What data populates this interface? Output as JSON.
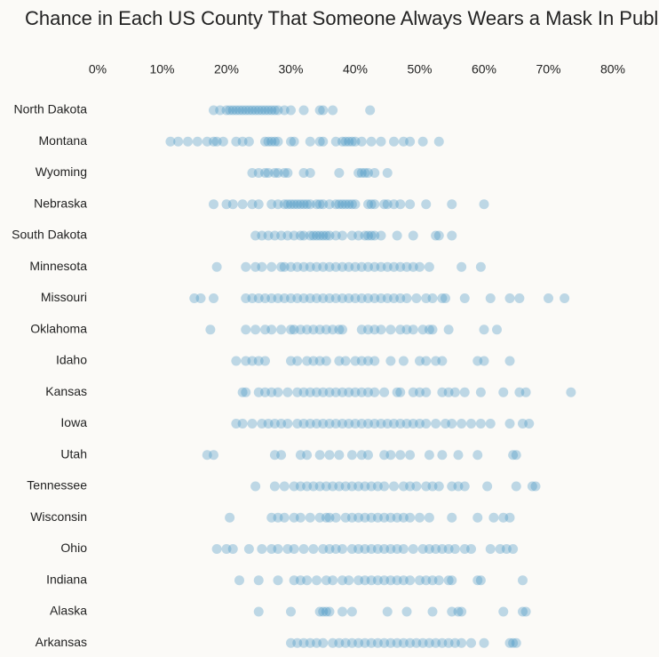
{
  "chart_data": {
    "type": "strip",
    "title": "Chance in Each US County That Someone Always Wears a Mask In Public",
    "color": "#3b8fc2",
    "xlim": [
      0,
      80
    ],
    "xticks": [
      {
        "value": 0,
        "label": "0%"
      },
      {
        "value": 10,
        "label": "10%"
      },
      {
        "value": 20,
        "label": "20%"
      },
      {
        "value": 30,
        "label": "30%"
      },
      {
        "value": 40,
        "label": "40%"
      },
      {
        "value": 50,
        "label": "50%"
      },
      {
        "value": 60,
        "label": "60%"
      },
      {
        "value": 70,
        "label": "70%"
      },
      {
        "value": 80,
        "label": "80%"
      }
    ],
    "categories": [
      "North Dakota",
      "Montana",
      "Wyoming",
      "Nebraska",
      "South Dakota",
      "Minnesota",
      "Missouri",
      "Oklahoma",
      "Idaho",
      "Kansas",
      "Iowa",
      "Utah",
      "Tennessee",
      "Wisconsin",
      "Ohio",
      "Indiana",
      "Alaska",
      "Arkansas"
    ],
    "values": [
      [
        18,
        19,
        20,
        20.5,
        21,
        21.5,
        22,
        22.5,
        23,
        23.5,
        24,
        24.5,
        25,
        25.5,
        26,
        26.5,
        27,
        27.5,
        28,
        29,
        30,
        32,
        34.5,
        35,
        36.5,
        42.3
      ],
      [
        11.3,
        12.5,
        14,
        15.5,
        17,
        18,
        18.5,
        19.5,
        21.5,
        22.5,
        23.5,
        26,
        26.5,
        27,
        27.5,
        28,
        30,
        30.5,
        33,
        34.5,
        35,
        37,
        38,
        38.5,
        39,
        39.5,
        40,
        41,
        42.5,
        44,
        46,
        47.5,
        48.5,
        50.5,
        53
      ],
      [
        24,
        25,
        26,
        26.5,
        27.5,
        28,
        29,
        29.5,
        32,
        33,
        37.5,
        40.5,
        41,
        41.5,
        42,
        43,
        45
      ],
      [
        18,
        20,
        21,
        22.5,
        24,
        25,
        27,
        28,
        29,
        29.5,
        30,
        30.5,
        31,
        31.5,
        32,
        32.5,
        33,
        34,
        34.5,
        35,
        36,
        37,
        37.5,
        38,
        38.5,
        39,
        39.5,
        40,
        42,
        42.5,
        43,
        44.5,
        45,
        46,
        47,
        48.5,
        51,
        55,
        60
      ],
      [
        24.5,
        25.5,
        26.5,
        27.5,
        28.5,
        29.5,
        30.5,
        31.5,
        32,
        33,
        33.5,
        34,
        34.5,
        35,
        35.5,
        36,
        37,
        38,
        39.5,
        40.5,
        41.5,
        42,
        42.5,
        43,
        44,
        46.5,
        49,
        52.5,
        53,
        55
      ],
      [
        18.5,
        23,
        24.5,
        25.5,
        27,
        28.5,
        29,
        30,
        31,
        32,
        33,
        34,
        35,
        36,
        37,
        38,
        39,
        40,
        41,
        42,
        43,
        44,
        45,
        46,
        47,
        48,
        49,
        50,
        51.5,
        56.5,
        59.5
      ],
      [
        15,
        16,
        18,
        23,
        24,
        25,
        26,
        27,
        28,
        29,
        30,
        31,
        32,
        33,
        34,
        35,
        36,
        37,
        38,
        39,
        40,
        41,
        42,
        43,
        44,
        45,
        46,
        47,
        48,
        49.5,
        51,
        52,
        53.5,
        54,
        57,
        61,
        64,
        65.5,
        70,
        72.5
      ],
      [
        17.5,
        23,
        24.5,
        26,
        27,
        28.5,
        30,
        30.5,
        31.5,
        32.5,
        33.5,
        34.5,
        35.5,
        36.5,
        37.5,
        38,
        41,
        42,
        43,
        44,
        45.5,
        47,
        48,
        49,
        50.5,
        51.5,
        52,
        54.5,
        60,
        62
      ],
      [
        21.5,
        23,
        24,
        25,
        26,
        30,
        31,
        32.5,
        33.5,
        34.5,
        35.5,
        37.5,
        38.5,
        40,
        41,
        42,
        43,
        45.5,
        47.5,
        50,
        51,
        52.5,
        53.5,
        59,
        60,
        64
      ],
      [
        22.5,
        23,
        25,
        26,
        27,
        28,
        29.5,
        31,
        32,
        33,
        34,
        35,
        36,
        37,
        38,
        39,
        40,
        41,
        42,
        43,
        44.5,
        46.5,
        47,
        49,
        50,
        51,
        53.5,
        54.5,
        55.5,
        57,
        59.5,
        63,
        65.5,
        66.5,
        73.5
      ],
      [
        21.5,
        22.5,
        24,
        25.5,
        26.5,
        27.5,
        28.5,
        29.5,
        31,
        32,
        33,
        34,
        35,
        36,
        37,
        38,
        39,
        40,
        41,
        42,
        43,
        44,
        45,
        46,
        47,
        48,
        49,
        50,
        51,
        52.5,
        54,
        55,
        56.5,
        58,
        59.5,
        61,
        64,
        66,
        67
      ],
      [
        17,
        18,
        27.5,
        28.5,
        31.5,
        32.5,
        34.5,
        36,
        37.5,
        39.5,
        41,
        42,
        44.5,
        45.5,
        47,
        48.5,
        51.5,
        53.5,
        56,
        59,
        64.5,
        65
      ],
      [
        24.5,
        27.5,
        29,
        30.5,
        31.5,
        32.5,
        33.5,
        34.5,
        35.5,
        36.5,
        37.5,
        38.5,
        39.5,
        40.5,
        41.5,
        42.5,
        43.5,
        44.5,
        46,
        47.5,
        48.5,
        49.5,
        51,
        52,
        53,
        55,
        56,
        57,
        60.5,
        65,
        67.5,
        68
      ],
      [
        20.5,
        27,
        28,
        29,
        30.5,
        31.5,
        33,
        34.5,
        35.5,
        36,
        37,
        38.5,
        39.5,
        40.5,
        41.5,
        42.5,
        43.5,
        44.5,
        45.5,
        46.5,
        47.5,
        48.5,
        50,
        51.5,
        55,
        59,
        61.5,
        63,
        64
      ],
      [
        18.5,
        20,
        21,
        23.5,
        25.5,
        27,
        28,
        29.5,
        30.5,
        32,
        33.5,
        35,
        36,
        37,
        38,
        39.5,
        40.5,
        41.5,
        42.5,
        43.5,
        44.5,
        45.5,
        46.5,
        47.5,
        49,
        50.5,
        51.5,
        52.5,
        53.5,
        54.5,
        55.5,
        57,
        58,
        61,
        62.5,
        63.5,
        64.5
      ],
      [
        22,
        25,
        28,
        30.5,
        31.5,
        32.5,
        34,
        35.5,
        36.5,
        38,
        39,
        40.5,
        41.5,
        42.5,
        43.5,
        44.5,
        45.5,
        46.5,
        47.5,
        48.5,
        50,
        51,
        52,
        53,
        54.5,
        55,
        59,
        59.5,
        66
      ],
      [
        25,
        30,
        34.5,
        35,
        35.5,
        36,
        38,
        39.5,
        45,
        48,
        52,
        55,
        56,
        56.5,
        63,
        66,
        66.5
      ],
      [
        30,
        31,
        32,
        33,
        34,
        35,
        36.5,
        37.5,
        38.5,
        39.5,
        40.5,
        41.5,
        42.5,
        43.5,
        44.5,
        45.5,
        46.5,
        47.5,
        48.5,
        49.5,
        50.5,
        51.5,
        52.5,
        53.5,
        54.5,
        55.5,
        56.5,
        58,
        60,
        64,
        64.5,
        65
      ]
    ]
  }
}
